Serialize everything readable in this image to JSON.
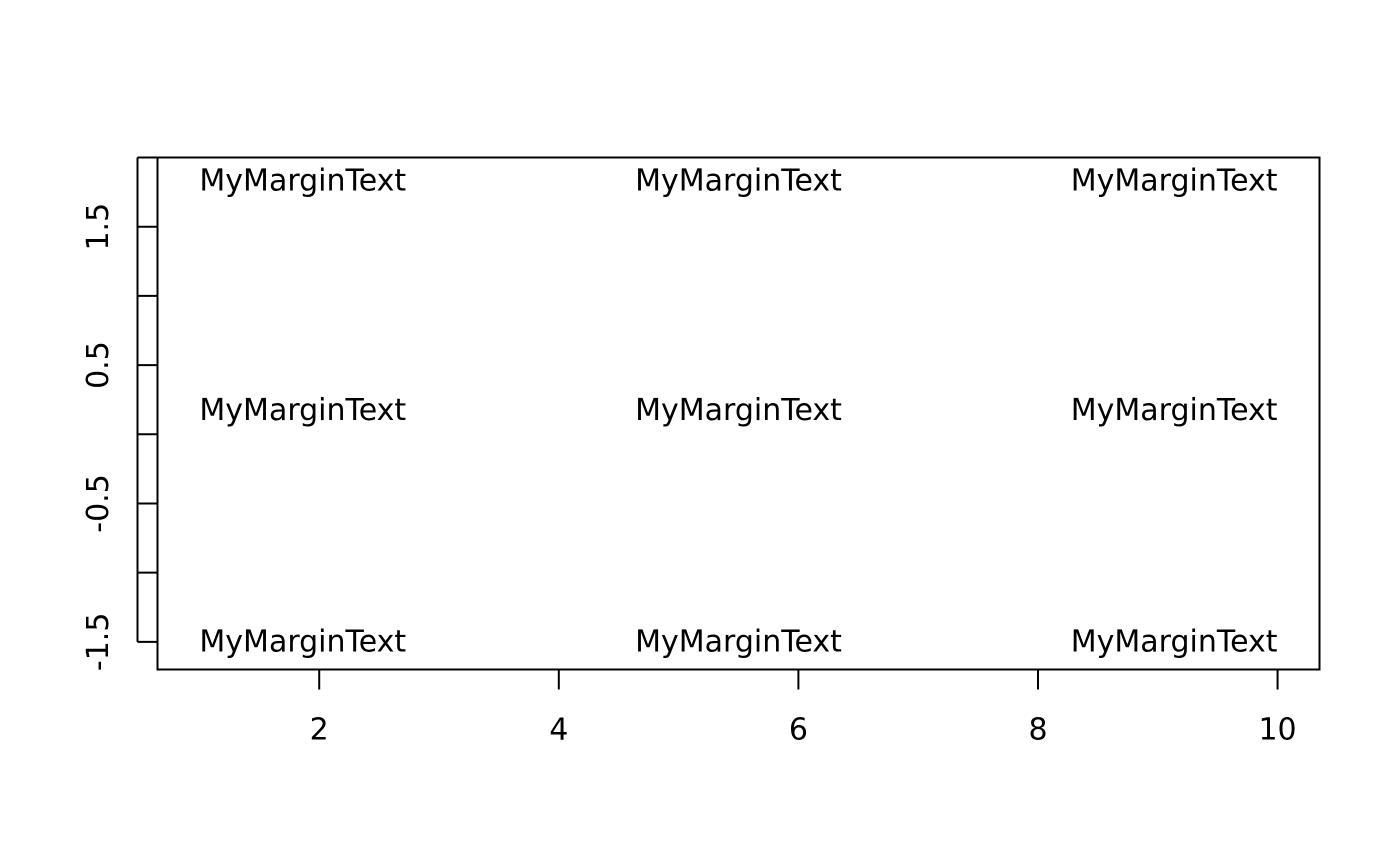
{
  "chart_data": {
    "type": "scatter",
    "title": "",
    "xlabel": "",
    "ylabel": "",
    "xlim": [
      0.65,
      10.35
    ],
    "ylim": [
      -1.7,
      2.0
    ],
    "x_ticks": [
      {
        "value": 2,
        "label": "2"
      },
      {
        "value": 4,
        "label": "4"
      },
      {
        "value": 6,
        "label": "6"
      },
      {
        "value": 8,
        "label": "8"
      },
      {
        "value": 10,
        "label": "10"
      }
    ],
    "y_ticks": [
      {
        "value": -1.5,
        "label": "-1.5"
      },
      {
        "value": -1.0,
        "label": ""
      },
      {
        "value": -0.5,
        "label": "-0.5"
      },
      {
        "value": 0.0,
        "label": ""
      },
      {
        "value": 0.5,
        "label": "0.5"
      },
      {
        "value": 1.0,
        "label": ""
      },
      {
        "value": 1.5,
        "label": "1.5"
      },
      {
        "value": 2.0,
        "label": ""
      }
    ],
    "grid": false,
    "annotations": [
      {
        "text": "MyMarginText",
        "x": 1.0,
        "y": 1.83,
        "align": "left"
      },
      {
        "text": "MyMarginText",
        "x": 5.5,
        "y": 1.83,
        "align": "center"
      },
      {
        "text": "MyMarginText",
        "x": 10.0,
        "y": 1.83,
        "align": "right"
      },
      {
        "text": "MyMarginText",
        "x": 1.0,
        "y": 0.17,
        "align": "left"
      },
      {
        "text": "MyMarginText",
        "x": 5.5,
        "y": 0.17,
        "align": "center"
      },
      {
        "text": "MyMarginText",
        "x": 10.0,
        "y": 0.17,
        "align": "right"
      },
      {
        "text": "MyMarginText",
        "x": 1.0,
        "y": -1.5,
        "align": "left"
      },
      {
        "text": "MyMarginText",
        "x": 5.5,
        "y": -1.5,
        "align": "center"
      },
      {
        "text": "MyMarginText",
        "x": 10.0,
        "y": -1.5,
        "align": "right"
      }
    ]
  }
}
